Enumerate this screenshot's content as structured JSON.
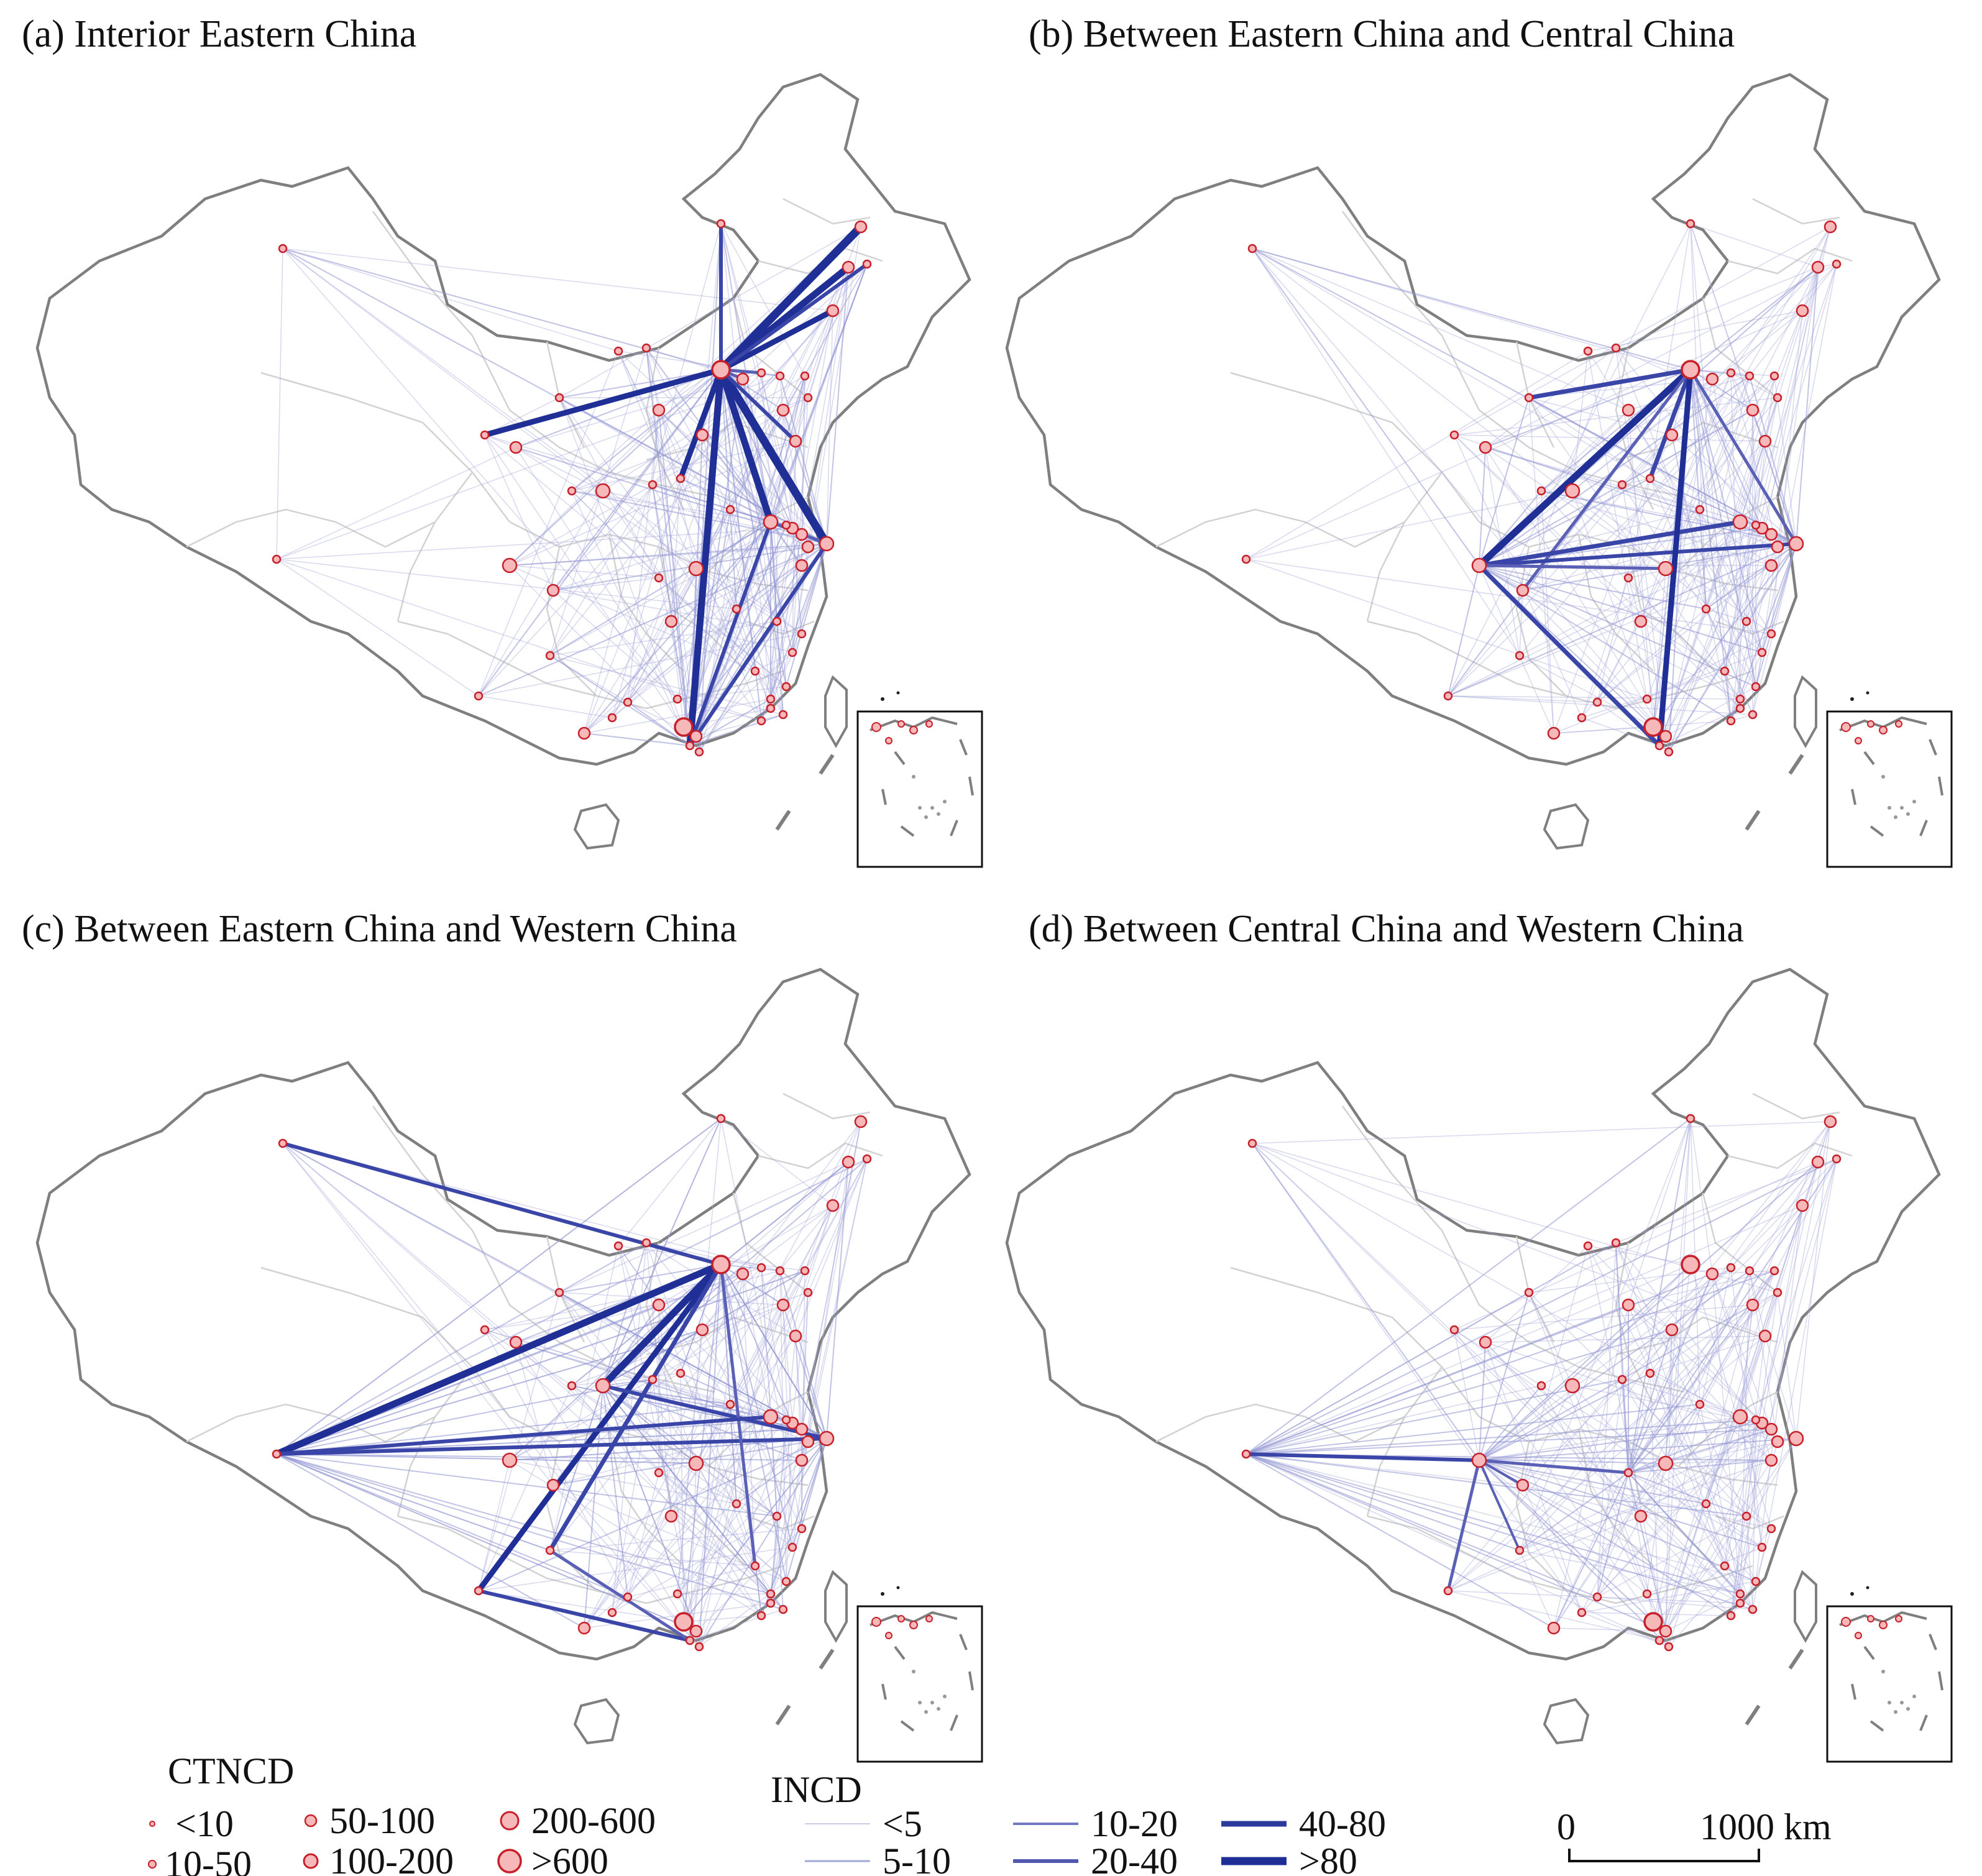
{
  "panels": [
    {
      "id": "a",
      "title": "(a) Interior Eastern China"
    },
    {
      "id": "b",
      "title": "(b) Between Eastern China and Central China"
    },
    {
      "id": "c",
      "title": "(c) Between Eastern China and Western China"
    },
    {
      "id": "d",
      "title": "(d) Between Central China and Western China"
    }
  ],
  "legend": {
    "ctncd_title": "CTNCD",
    "ctncd_classes": [
      "<10",
      "10-50",
      "50-100",
      "100-200",
      "200-600",
      ">600"
    ],
    "incd_title": "INCD",
    "incd_classes": [
      "<5",
      "5-10",
      "10-20",
      "20-40",
      "40-80",
      ">80"
    ],
    "scale_zero": "0",
    "scale_end": "1000 km"
  },
  "colors": {
    "node_fill": "#f6b8b8",
    "node_stroke": "#c8202a",
    "flow": "#2b3a9c",
    "border": "#808080",
    "province": "#d0d0d0"
  }
}
